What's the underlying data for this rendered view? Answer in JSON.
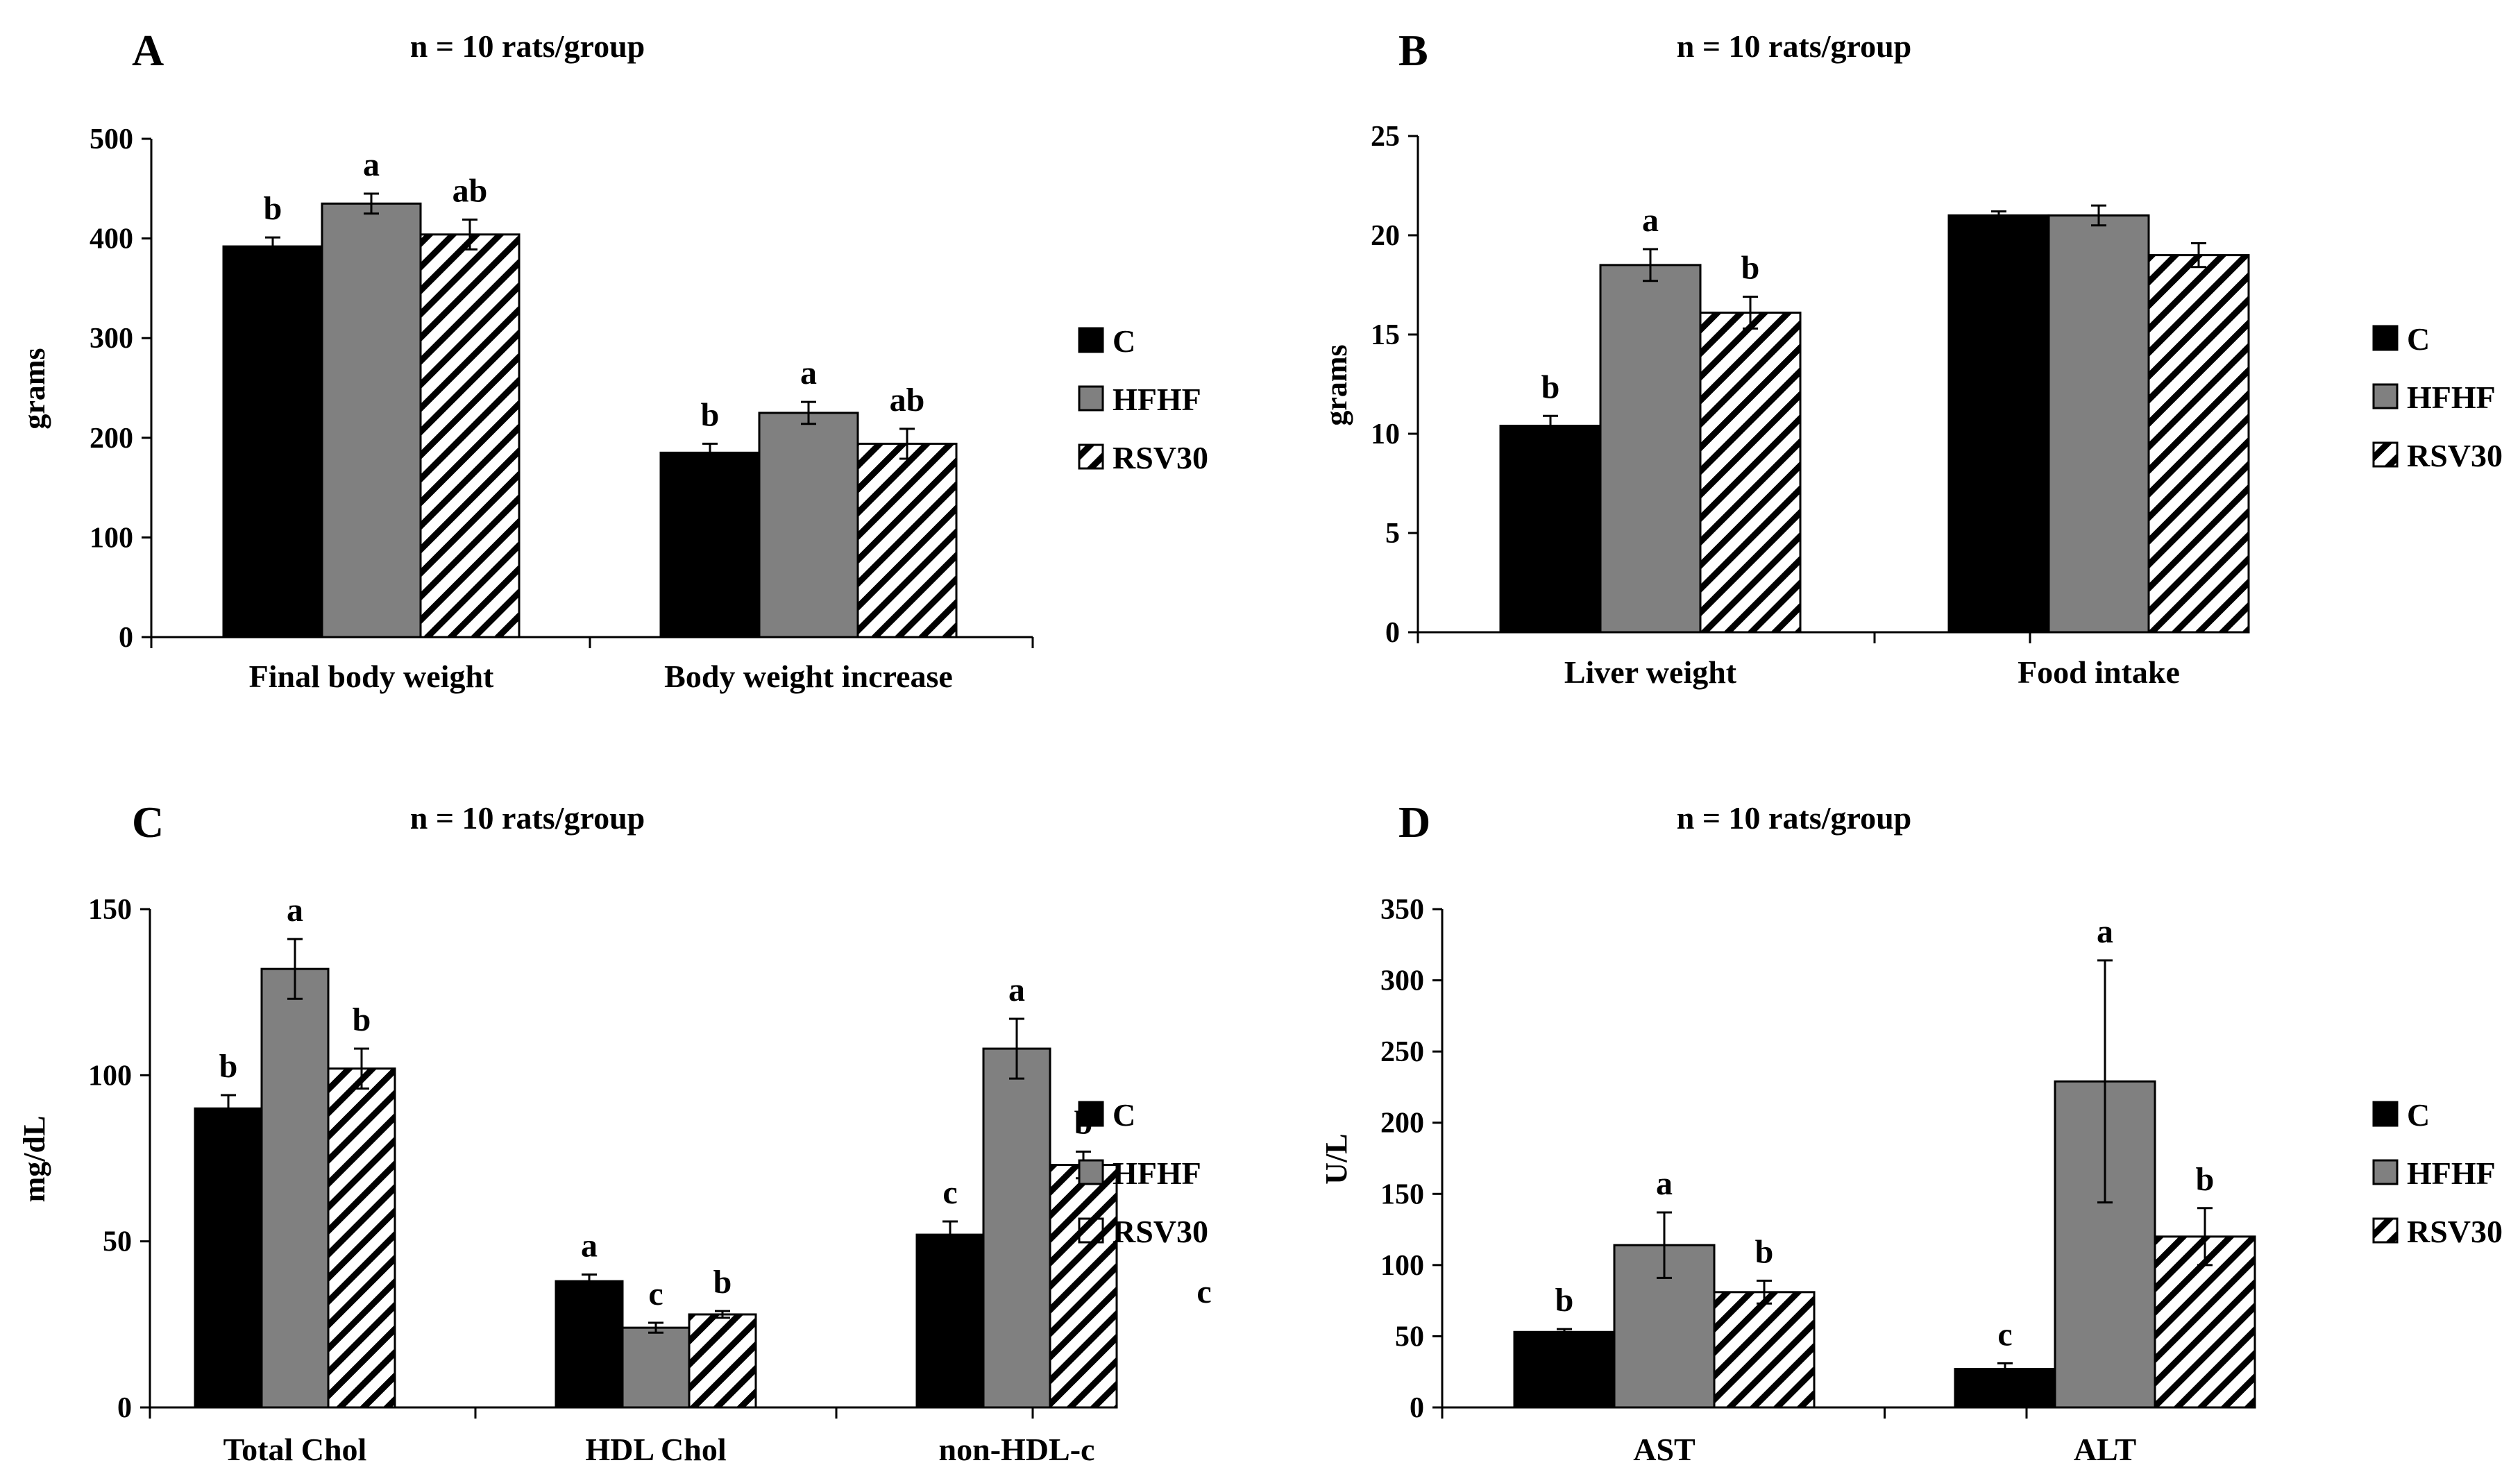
{
  "colors": {
    "C": "#000000",
    "HFHF": "#808080",
    "RSV30": "hatch",
    "axis": "#000000",
    "background": "#ffffff"
  },
  "chart_data": [
    {
      "id": "A",
      "type": "bar",
      "panel_letter": "A",
      "title": "n = 10 rats/group",
      "ylabel": "grams",
      "xlabel": "",
      "ylim": [
        0,
        500
      ],
      "yticks": [
        0,
        100,
        200,
        300,
        400,
        500
      ],
      "grid": false,
      "legend_position": "right",
      "categories": [
        "Final body weight",
        "Body weight increase"
      ],
      "series": [
        {
          "name": "C",
          "values": [
            392,
            185
          ],
          "errors": [
            9,
            9
          ],
          "sig": [
            "b",
            "b"
          ]
        },
        {
          "name": "HFHF",
          "values": [
            435,
            225
          ],
          "errors": [
            10,
            11
          ],
          "sig": [
            "a",
            "a"
          ]
        },
        {
          "name": "RSV30",
          "values": [
            404,
            194
          ],
          "errors": [
            15,
            15
          ],
          "sig": [
            "ab",
            "ab"
          ]
        }
      ],
      "extra_labels": []
    },
    {
      "id": "B",
      "type": "bar",
      "panel_letter": "B",
      "title": "n = 10 rats/group",
      "ylabel": "grams",
      "xlabel": "",
      "ylim": [
        0,
        25
      ],
      "yticks": [
        0,
        5,
        10,
        15,
        20,
        25
      ],
      "grid": false,
      "legend_position": "right",
      "categories": [
        "Liver weight",
        "Food intake"
      ],
      "series": [
        {
          "name": "C",
          "values": [
            10.4,
            21.0
          ],
          "errors": [
            0.5,
            0.2
          ],
          "sig": [
            "b",
            ""
          ]
        },
        {
          "name": "HFHF",
          "values": [
            18.5,
            21.0
          ],
          "errors": [
            0.8,
            0.5
          ],
          "sig": [
            "a",
            ""
          ]
        },
        {
          "name": "RSV30",
          "values": [
            16.1,
            19.0
          ],
          "errors": [
            0.8,
            0.6
          ],
          "sig": [
            "b",
            ""
          ]
        }
      ],
      "extra_labels": []
    },
    {
      "id": "C",
      "type": "bar",
      "panel_letter": "C",
      "title": "n = 10 rats/group",
      "ylabel": "mg/dL",
      "xlabel": "",
      "ylim": [
        0,
        150
      ],
      "yticks": [
        0,
        50,
        100,
        150
      ],
      "grid": false,
      "legend_position": "right",
      "categories": [
        "Total Chol",
        "HDL Chol",
        "non-HDL-c"
      ],
      "series": [
        {
          "name": "C",
          "values": [
            90,
            38,
            52
          ],
          "errors": [
            4,
            2,
            4
          ],
          "sig": [
            "b",
            "a",
            "c"
          ]
        },
        {
          "name": "HFHF",
          "values": [
            132,
            24,
            108
          ],
          "errors": [
            9,
            1.5,
            9
          ],
          "sig": [
            "a",
            "c",
            "a"
          ]
        },
        {
          "name": "RSV30",
          "values": [
            102,
            28,
            73
          ],
          "errors": [
            6,
            1,
            4
          ],
          "sig": [
            "b",
            "b",
            "b"
          ]
        }
      ],
      "extra_labels": [
        "c"
      ]
    },
    {
      "id": "D",
      "type": "bar",
      "panel_letter": "D",
      "title": "n = 10 rats/group",
      "ylabel": "U/L",
      "xlabel": "",
      "ylim": [
        0,
        350
      ],
      "yticks": [
        0,
        50,
        100,
        150,
        200,
        250,
        300,
        350
      ],
      "grid": false,
      "legend_position": "right",
      "categories": [
        "AST",
        "ALT"
      ],
      "series": [
        {
          "name": "C",
          "values": [
            53,
            27
          ],
          "errors": [
            2,
            4
          ],
          "sig": [
            "b",
            "c"
          ]
        },
        {
          "name": "HFHF",
          "values": [
            114,
            229
          ],
          "errors": [
            23,
            85
          ],
          "sig": [
            "a",
            "a"
          ]
        },
        {
          "name": "RSV30",
          "values": [
            81,
            120
          ],
          "errors": [
            8,
            20
          ],
          "sig": [
            "b",
            "b"
          ]
        }
      ],
      "extra_labels": []
    }
  ]
}
